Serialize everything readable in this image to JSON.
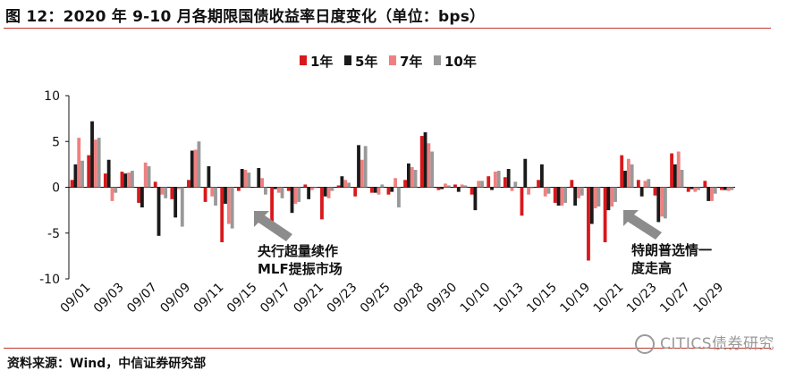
{
  "header": {
    "title": "图 12：2020 年 9-10 月各期限国债收益率日度变化（单位：bps）"
  },
  "footer": {
    "source": "资料来源：Wind，中信证券研究部",
    "watermark": "CITICS债券研究"
  },
  "chart_data": {
    "type": "bar",
    "ylim": [
      -10,
      10
    ],
    "yticks": [
      10,
      5,
      0,
      -5,
      -10
    ],
    "xtick_labels": [
      "09/01",
      "09/03",
      "09/07",
      "09/09",
      "09/11",
      "09/15",
      "09/17",
      "09/21",
      "09/23",
      "09/25",
      "09/28",
      "09/30",
      "10/10",
      "10/13",
      "10/15",
      "10/19",
      "10/21",
      "10/23",
      "10/27",
      "10/29"
    ],
    "categories": [
      "09/01",
      "09/02",
      "09/03",
      "09/04",
      "09/07",
      "09/08",
      "09/09",
      "09/10",
      "09/11",
      "09/14",
      "09/15",
      "09/16",
      "09/17",
      "09/18",
      "09/21",
      "09/22",
      "09/23",
      "09/24",
      "09/25",
      "09/27",
      "09/28",
      "09/29",
      "09/30",
      "10/09",
      "10/10",
      "10/12",
      "10/13",
      "10/14",
      "10/15",
      "10/16",
      "10/19",
      "10/20",
      "10/21",
      "10/22",
      "10/23",
      "10/26",
      "10/27",
      "10/28",
      "10/29",
      "10/30"
    ],
    "series": [
      {
        "name": "1年",
        "color": "#d7191c",
        "values": [
          0.8,
          3.5,
          1.5,
          1.7,
          -1.7,
          0.6,
          -1.3,
          0.8,
          -1.6,
          -6.0,
          -0.4,
          0.0,
          -4.5,
          -0.4,
          0.3,
          -3.5,
          0.2,
          -1.0,
          -0.6,
          -0.8,
          0.8,
          5.6,
          -0.3,
          0.3,
          -0.8,
          1.2,
          1.1,
          -3.1,
          0.8,
          -1.7,
          0.8,
          -8.0,
          -6.0,
          3.5,
          0.8,
          -0.9,
          3.7,
          -0.5,
          0.7,
          -0.3
        ]
      },
      {
        "name": "5年",
        "color": "#1a1a1a",
        "values": [
          2.5,
          7.2,
          3.0,
          1.5,
          -2.2,
          -5.3,
          -3.3,
          4.0,
          2.3,
          -1.8,
          2.0,
          2.1,
          -0.2,
          -2.8,
          -1.3,
          -1.0,
          1.2,
          4.6,
          -0.6,
          -0.5,
          2.6,
          6.0,
          -0.2,
          -0.5,
          -2.5,
          -0.3,
          2.0,
          3.1,
          2.5,
          -2.0,
          -2.0,
          -4.0,
          -2.5,
          1.8,
          -1.0,
          -3.8,
          2.5,
          -0.2,
          -1.5,
          -0.3
        ]
      },
      {
        "name": "7年",
        "color": "#f08080",
        "values": [
          5.4,
          5.2,
          -1.5,
          1.6,
          2.7,
          -0.8,
          -0.2,
          4.1,
          -1.0,
          -4.0,
          1.9,
          1.0,
          -0.6,
          -1.8,
          -0.3,
          -1.2,
          0.8,
          3.0,
          -0.8,
          1.0,
          2.2,
          4.8,
          0.4,
          0.3,
          0.7,
          1.7,
          -0.4,
          -0.8,
          -1.0,
          -2.0,
          -1.2,
          -2.3,
          -2.1,
          3.1,
          0.7,
          -3.2,
          3.9,
          -0.5,
          -1.5,
          -0.4
        ]
      },
      {
        "name": "10年",
        "color": "#999999",
        "values": [
          2.9,
          5.4,
          -0.6,
          1.8,
          2.3,
          -1.2,
          -4.3,
          5.0,
          -2.0,
          -4.5,
          1.6,
          -0.8,
          -1.2,
          -1.6,
          -0.1,
          -0.4,
          0.5,
          4.5,
          0.3,
          -2.2,
          1.9,
          3.9,
          0.2,
          0.2,
          0.7,
          1.8,
          0.6,
          -0.1,
          -0.7,
          -1.7,
          -0.9,
          -2.1,
          -1.6,
          2.5,
          0.9,
          -3.4,
          1.9,
          -0.3,
          -0.7,
          -0.3
        ]
      }
    ],
    "annotations": [
      {
        "name": "annotation-mlf",
        "lines": [
          "央行超量续作",
          "MLF提振市场"
        ]
      },
      {
        "name": "annotation-trump",
        "lines": [
          "特朗普选情一",
          "度走高"
        ]
      }
    ]
  }
}
